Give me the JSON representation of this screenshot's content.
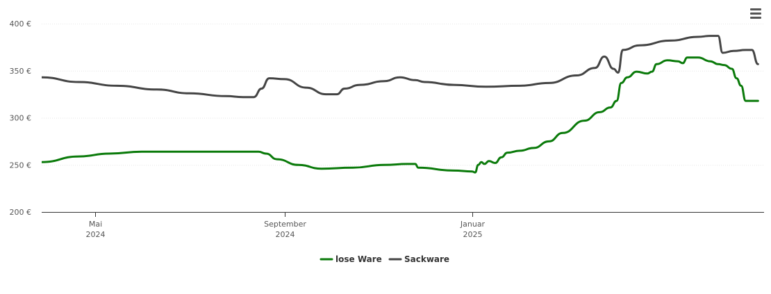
{
  "menu": {
    "icon": "hamburger-menu-icon"
  },
  "chart_data": {
    "type": "line",
    "title": "",
    "xlabel": "",
    "ylabel": "",
    "ylim": [
      200,
      400
    ],
    "y_ticks": [
      200,
      250,
      300,
      350,
      400
    ],
    "y_tick_labels": [
      "200 €",
      "250 €",
      "300 €",
      "350 €",
      "400 €"
    ],
    "x_range": [
      "2024-03-27",
      "2025-06-25"
    ],
    "x_ticks": [
      {
        "date": "2024-05-01",
        "label_line1": "Mai",
        "label_line2": "2024"
      },
      {
        "date": "2024-09-01",
        "label_line1": "September",
        "label_line2": "2024"
      },
      {
        "date": "2025-01-01",
        "label_line1": "Januar",
        "label_line2": "2025"
      }
    ],
    "grid": "horizontal",
    "legend_position": "bottom-center",
    "series": [
      {
        "name": "lose Ware",
        "color": "#0a7a0a",
        "points": [
          [
            "2024-03-27",
            253
          ],
          [
            "2024-04-20",
            259
          ],
          [
            "2024-05-10",
            262
          ],
          [
            "2024-05-31",
            264
          ],
          [
            "2024-07-15",
            264
          ],
          [
            "2024-08-15",
            264
          ],
          [
            "2024-08-20",
            262
          ],
          [
            "2024-08-27",
            256
          ],
          [
            "2024-09-10",
            250
          ],
          [
            "2024-09-25",
            246
          ],
          [
            "2024-10-15",
            247
          ],
          [
            "2024-11-05",
            250
          ],
          [
            "2024-11-20",
            251
          ],
          [
            "2024-11-25",
            251
          ],
          [
            "2024-11-27",
            247
          ],
          [
            "2024-12-20",
            244
          ],
          [
            "2025-01-01",
            243
          ],
          [
            "2025-01-03",
            242
          ],
          [
            "2025-01-05",
            250
          ],
          [
            "2025-01-07",
            253
          ],
          [
            "2025-01-09",
            251
          ],
          [
            "2025-01-12",
            254
          ],
          [
            "2025-01-16",
            252
          ],
          [
            "2025-01-20",
            258
          ],
          [
            "2025-01-24",
            263
          ],
          [
            "2025-02-01",
            265
          ],
          [
            "2025-02-10",
            268
          ],
          [
            "2025-02-20",
            275
          ],
          [
            "2025-03-01",
            284
          ],
          [
            "2025-03-15",
            297
          ],
          [
            "2025-03-25",
            306
          ],
          [
            "2025-04-01",
            311
          ],
          [
            "2025-04-05",
            318
          ],
          [
            "2025-04-08",
            337
          ],
          [
            "2025-04-12",
            343
          ],
          [
            "2025-04-18",
            349
          ],
          [
            "2025-04-25",
            347
          ],
          [
            "2025-04-28",
            349
          ],
          [
            "2025-05-01",
            357
          ],
          [
            "2025-05-08",
            361
          ],
          [
            "2025-05-15",
            360
          ],
          [
            "2025-05-18",
            358
          ],
          [
            "2025-05-21",
            364
          ],
          [
            "2025-05-28",
            364
          ],
          [
            "2025-06-05",
            360
          ],
          [
            "2025-06-10",
            357
          ],
          [
            "2025-06-14",
            356
          ],
          [
            "2025-06-19",
            352
          ],
          [
            "2025-06-22",
            342
          ],
          [
            "2025-06-25",
            334
          ],
          [
            "2025-06-28",
            318
          ],
          [
            "2025-07-06",
            318
          ]
        ]
      },
      {
        "name": "Sackware",
        "color": "#444444",
        "points": [
          [
            "2024-03-27",
            343
          ],
          [
            "2024-04-20",
            338
          ],
          [
            "2024-05-15",
            334
          ],
          [
            "2024-06-10",
            330
          ],
          [
            "2024-07-01",
            326
          ],
          [
            "2024-07-25",
            323
          ],
          [
            "2024-08-05",
            322
          ],
          [
            "2024-08-12",
            322
          ],
          [
            "2024-08-17",
            331
          ],
          [
            "2024-08-22",
            342
          ],
          [
            "2024-09-01",
            341
          ],
          [
            "2024-09-15",
            332
          ],
          [
            "2024-09-28",
            325
          ],
          [
            "2024-10-05",
            325
          ],
          [
            "2024-10-10",
            331
          ],
          [
            "2024-10-20",
            335
          ],
          [
            "2024-11-05",
            339
          ],
          [
            "2024-11-15",
            343
          ],
          [
            "2024-11-25",
            340
          ],
          [
            "2024-12-01",
            338
          ],
          [
            "2024-12-20",
            335
          ],
          [
            "2025-01-10",
            333
          ],
          [
            "2025-02-01",
            334
          ],
          [
            "2025-02-20",
            337
          ],
          [
            "2025-03-10",
            345
          ],
          [
            "2025-03-22",
            353
          ],
          [
            "2025-03-28",
            365
          ],
          [
            "2025-04-03",
            352
          ],
          [
            "2025-04-06",
            348
          ],
          [
            "2025-04-09",
            372
          ],
          [
            "2025-04-20",
            377
          ],
          [
            "2025-05-10",
            382
          ],
          [
            "2025-05-28",
            386
          ],
          [
            "2025-06-05",
            387
          ],
          [
            "2025-06-10",
            387
          ],
          [
            "2025-06-13",
            369
          ],
          [
            "2025-06-20",
            371
          ],
          [
            "2025-06-28",
            372
          ],
          [
            "2025-07-02",
            372
          ],
          [
            "2025-07-06",
            357
          ]
        ]
      }
    ]
  }
}
